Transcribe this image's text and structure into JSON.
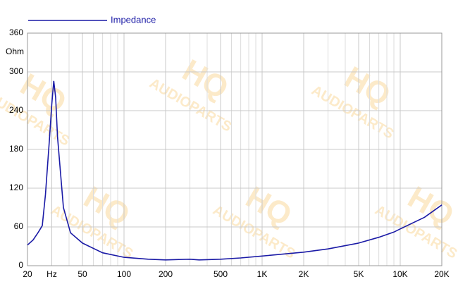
{
  "chart_data": {
    "type": "line",
    "x_scale": "log",
    "xlim": [
      20,
      20000
    ],
    "xticks": [
      20,
      {
        "value": 30,
        "label": "Hz"
      },
      50,
      100,
      200,
      500,
      {
        "value": 1000,
        "label": "1K"
      },
      {
        "value": 2000,
        "label": "2K"
      },
      {
        "value": 5000,
        "label": "5K"
      },
      {
        "value": 10000,
        "label": "10K"
      },
      {
        "value": 20000,
        "label": "20K"
      }
    ],
    "x_minor_ticks": [
      40,
      60,
      70,
      80,
      90,
      300,
      400,
      600,
      700,
      800,
      900,
      3000,
      4000,
      6000,
      7000,
      8000,
      9000
    ],
    "ylim": [
      0,
      360
    ],
    "yticks": [
      0,
      60,
      120,
      180,
      240,
      300,
      360
    ],
    "y_label": "Ohm",
    "grid": true,
    "legend": "top-left",
    "watermark": {
      "line1": "HQ",
      "line2": "AUDIOPARTS"
    },
    "series": [
      {
        "name": "Impedance",
        "color": "#1a1aa6",
        "x": [
          20,
          22,
          24,
          25.6,
          27,
          28.8,
          30,
          31,
          32,
          33,
          34.5,
          36.4,
          41,
          50,
          70,
          100,
          150,
          200,
          300,
          350,
          500,
          700,
          1000,
          2000,
          3000,
          5000,
          7000,
          9000,
          10000,
          15000,
          20000
        ],
        "values": [
          32,
          40,
          52,
          62,
          110,
          193,
          250,
          286,
          260,
          200,
          150,
          90,
          51,
          35,
          20,
          13,
          10,
          9,
          10,
          9,
          10,
          12,
          15,
          21,
          26,
          35,
          44,
          52,
          57,
          75,
          94
        ]
      }
    ]
  }
}
